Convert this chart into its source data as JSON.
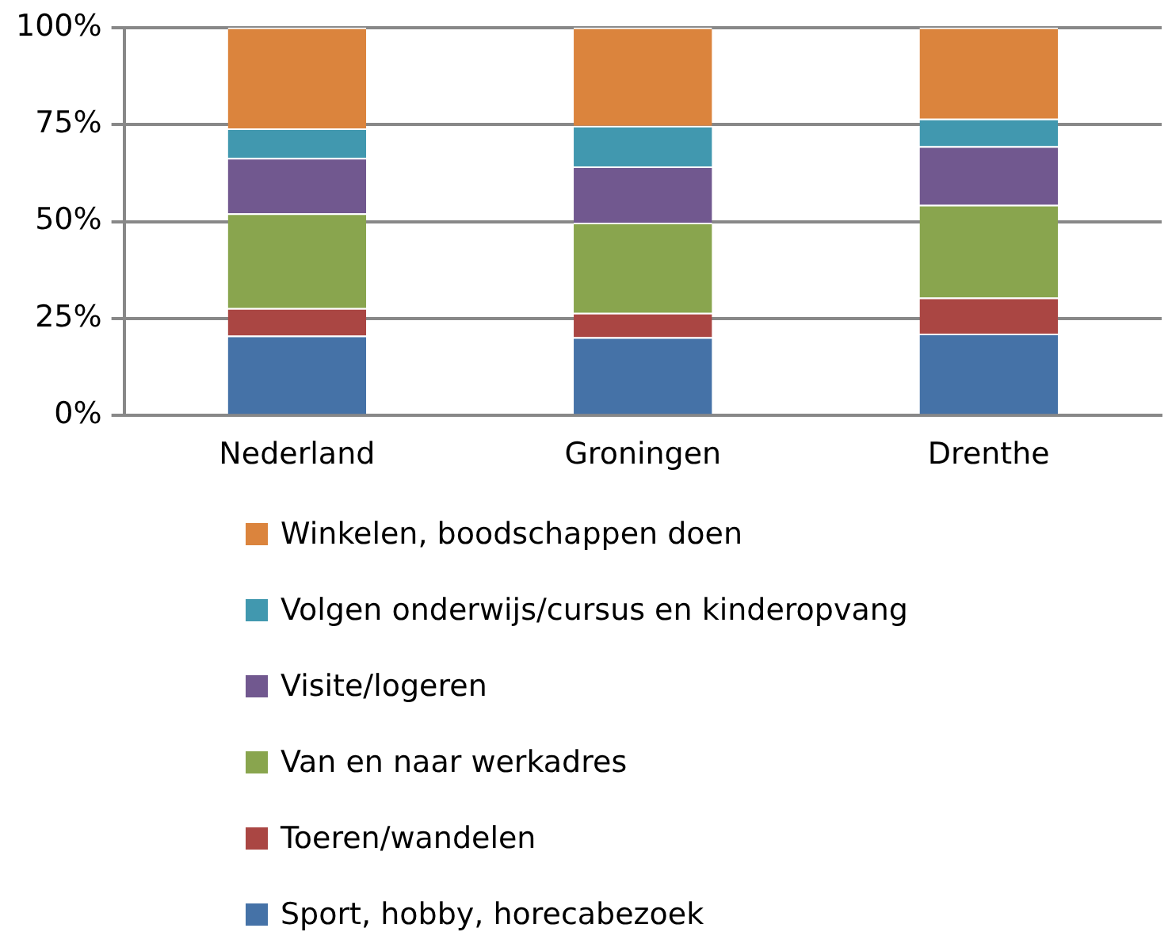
{
  "chart_data": {
    "type": "bar",
    "stacked": true,
    "categories": [
      "Nederland",
      "Groningen",
      "Drenthe"
    ],
    "series": [
      {
        "name": "Sport, hobby, horecabezoek",
        "color": "#4572a7",
        "values": [
          20.6,
          20.2,
          21.1
        ]
      },
      {
        "name": "Toeren/wandelen",
        "color": "#aa4643",
        "values": [
          7.1,
          6.3,
          9.3
        ]
      },
      {
        "name": "Van en naar werkadres",
        "color": "#89a54e",
        "values": [
          24.4,
          23.2,
          23.9
        ]
      },
      {
        "name": "Visite/logeren",
        "color": "#71588f",
        "values": [
          14.3,
          14.5,
          15.1
        ]
      },
      {
        "name": "Volgen onderwijs/cursus en kinderopvang",
        "color": "#4198af",
        "values": [
          7.6,
          10.5,
          7.1
        ]
      },
      {
        "name": "Winkelen, boodschappen doen",
        "color": "#db843d",
        "values": [
          26.0,
          25.3,
          23.5
        ]
      }
    ],
    "ylim": [
      0,
      100
    ],
    "yticks": [
      {
        "value": 0,
        "label": "0%"
      },
      {
        "value": 25,
        "label": "25%"
      },
      {
        "value": 50,
        "label": "50%"
      },
      {
        "value": 75,
        "label": "75%"
      },
      {
        "value": 100,
        "label": "100%"
      }
    ],
    "grid": "y",
    "legend": "bottom"
  }
}
